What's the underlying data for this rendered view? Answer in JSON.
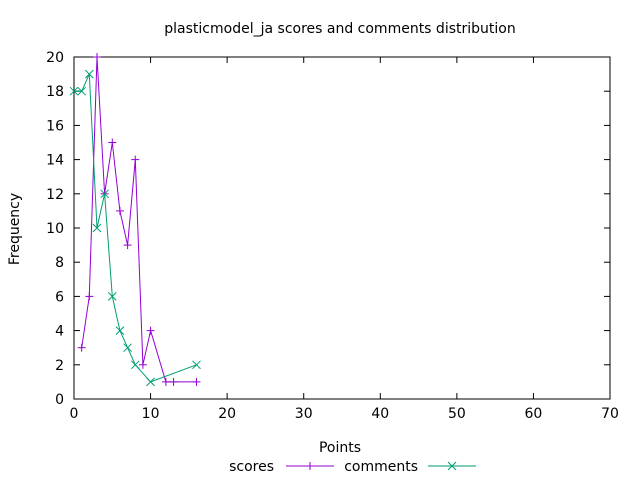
{
  "chart_data": {
    "type": "line",
    "title": "plasticmodel_ja scores and comments distribution",
    "xlabel": "Points",
    "ylabel": "Frequency",
    "xlim": [
      0,
      70
    ],
    "ylim": [
      0,
      20
    ],
    "xticks": [
      0,
      10,
      20,
      30,
      40,
      50,
      60,
      70
    ],
    "yticks": [
      0,
      2,
      4,
      6,
      8,
      10,
      12,
      14,
      16,
      18,
      20
    ],
    "grid": false,
    "legend_position": "bottom-center",
    "series": [
      {
        "name": "scores",
        "color": "#9400d3",
        "marker": "plus",
        "x": [
          1,
          2,
          3,
          4,
          5,
          6,
          7,
          8,
          9,
          10,
          12,
          13,
          16
        ],
        "y": [
          3,
          6,
          20,
          12,
          15,
          11,
          9,
          14,
          2,
          4,
          1,
          1,
          1
        ]
      },
      {
        "name": "comments",
        "color": "#009e73",
        "marker": "cross",
        "x": [
          0,
          1,
          2,
          3,
          4,
          5,
          6,
          7,
          8,
          10,
          16
        ],
        "y": [
          18,
          18,
          19,
          10,
          12,
          6,
          4,
          3,
          2,
          1,
          2
        ]
      }
    ]
  }
}
